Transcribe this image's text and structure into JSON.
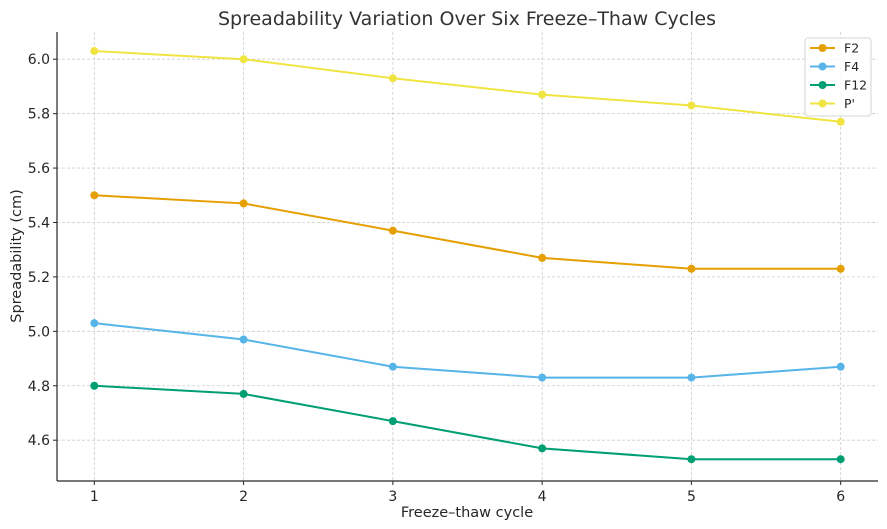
{
  "chart_data": {
    "type": "line",
    "title": "Spreadability Variation Over Six Freeze–Thaw Cycles",
    "xlabel": "Freeze–thaw cycle",
    "ylabel": "Spreadability (cm)",
    "x": [
      1,
      2,
      3,
      4,
      5,
      6
    ],
    "xticks": [
      "1",
      "2",
      "3",
      "4",
      "5",
      "6"
    ],
    "yticks": [
      "4.6",
      "4.8",
      "5.0",
      "5.2",
      "5.4",
      "5.6",
      "5.8",
      "6.0"
    ],
    "ylim": [
      4.45,
      6.1
    ],
    "xlim": [
      0.75,
      6.25
    ],
    "grid": true,
    "legend_position": "top-right",
    "series": [
      {
        "name": "F2",
        "color": "#E69F00",
        "values": [
          5.5,
          5.47,
          5.37,
          5.27,
          5.23,
          5.23
        ]
      },
      {
        "name": "F4",
        "color": "#56B4E9",
        "values": [
          5.03,
          4.97,
          4.87,
          4.83,
          4.83,
          4.87
        ]
      },
      {
        "name": "F12",
        "color": "#009E73",
        "values": [
          4.8,
          4.77,
          4.67,
          4.57,
          4.53,
          4.53
        ]
      },
      {
        "name": "P'",
        "color": "#F0E442",
        "values": [
          6.03,
          6.0,
          5.93,
          5.87,
          5.83,
          5.77
        ]
      }
    ]
  }
}
